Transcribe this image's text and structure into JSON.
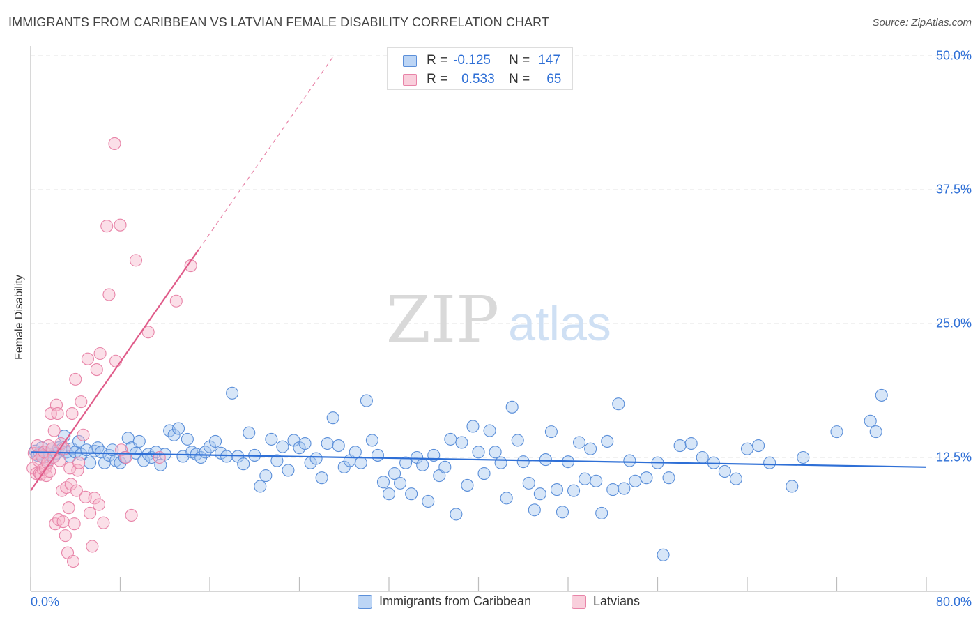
{
  "chart_data": {
    "type": "scatter",
    "title": "IMMIGRANTS FROM CARIBBEAN VS LATVIAN FEMALE DISABILITY CORRELATION CHART",
    "source": "Source: ZipAtlas.com",
    "watermark": {
      "zip": "ZIP",
      "atlas": "atlas"
    },
    "ylabel": "Female Disability",
    "xlim": [
      0,
      80
    ],
    "ylim": [
      0,
      50
    ],
    "x_tick_labels": {
      "min": "0.0%",
      "max": "80.0%"
    },
    "y_ticks": [
      {
        "value": 12.5,
        "label": "12.5%"
      },
      {
        "value": 25.0,
        "label": "25.0%"
      },
      {
        "value": 37.5,
        "label": "37.5%"
      },
      {
        "value": 50.0,
        "label": "50.0%"
      }
    ],
    "colors": {
      "blue_fill": "#a7c7f0",
      "blue_stroke": "#5b8fd9",
      "blue_line": "#2e6fd6",
      "pink_fill": "#f6b8cb",
      "pink_stroke": "#e884a8",
      "pink_line": "#e05c8a",
      "grid": "#e3e3e3",
      "accent_text": "#2e6fd6"
    },
    "legend_top": [
      {
        "r_label": "R =",
        "r": "-0.125",
        "n_label": "N =",
        "n": "147"
      },
      {
        "r_label": "R =",
        "r": "0.533",
        "n_label": "N =",
        "n": "65"
      }
    ],
    "legend_bottom": [
      "Immigrants from Caribbean",
      "Latvians"
    ],
    "series": [
      {
        "name": "Immigrants from Caribbean",
        "trend": {
          "x0": 0,
          "y0": 13.0,
          "x1": 80,
          "y1": 11.6
        },
        "points": [
          [
            0.4,
            13.1
          ],
          [
            0.6,
            12.7
          ],
          [
            0.8,
            12.9
          ],
          [
            1.0,
            13.4
          ],
          [
            1.1,
            12.5
          ],
          [
            1.3,
            13.0
          ],
          [
            1.5,
            12.2
          ],
          [
            1.7,
            12.8
          ],
          [
            1.9,
            13.3
          ],
          [
            2.1,
            12.6
          ],
          [
            2.3,
            12.9
          ],
          [
            2.5,
            13.4
          ],
          [
            2.8,
            13.3
          ],
          [
            3.0,
            14.5
          ],
          [
            3.2,
            13.0
          ],
          [
            3.5,
            12.6
          ],
          [
            3.7,
            13.3
          ],
          [
            4.0,
            13.0
          ],
          [
            4.3,
            14.0
          ],
          [
            4.5,
            12.8
          ],
          [
            5.0,
            13.2
          ],
          [
            5.3,
            12.0
          ],
          [
            5.7,
            13.1
          ],
          [
            6.0,
            13.4
          ],
          [
            6.3,
            13.0
          ],
          [
            6.6,
            12.0
          ],
          [
            7.0,
            12.7
          ],
          [
            7.3,
            13.2
          ],
          [
            7.6,
            12.2
          ],
          [
            8.0,
            12.0
          ],
          [
            8.4,
            12.5
          ],
          [
            8.7,
            14.3
          ],
          [
            9.0,
            13.4
          ],
          [
            9.4,
            12.9
          ],
          [
            9.7,
            14.0
          ],
          [
            10.1,
            12.2
          ],
          [
            10.5,
            12.8
          ],
          [
            10.8,
            12.5
          ],
          [
            11.2,
            13.0
          ],
          [
            11.6,
            11.8
          ],
          [
            12.0,
            12.8
          ],
          [
            12.4,
            15.0
          ],
          [
            12.8,
            14.6
          ],
          [
            13.2,
            15.2
          ],
          [
            13.6,
            12.6
          ],
          [
            14.0,
            14.2
          ],
          [
            14.4,
            13.0
          ],
          [
            14.8,
            12.8
          ],
          [
            15.2,
            12.5
          ],
          [
            15.6,
            13.0
          ],
          [
            16.0,
            13.5
          ],
          [
            16.5,
            14.0
          ],
          [
            17.0,
            12.9
          ],
          [
            17.5,
            12.6
          ],
          [
            18.0,
            18.5
          ],
          [
            18.5,
            12.6
          ],
          [
            19.0,
            11.9
          ],
          [
            19.5,
            14.8
          ],
          [
            20.0,
            12.7
          ],
          [
            20.5,
            9.8
          ],
          [
            21.0,
            10.8
          ],
          [
            21.5,
            14.2
          ],
          [
            22.0,
            12.2
          ],
          [
            22.5,
            13.5
          ],
          [
            23.0,
            11.3
          ],
          [
            23.5,
            14.1
          ],
          [
            24.0,
            13.4
          ],
          [
            24.5,
            13.8
          ],
          [
            25.0,
            12.0
          ],
          [
            25.5,
            12.4
          ],
          [
            26.0,
            10.6
          ],
          [
            26.5,
            13.8
          ],
          [
            27.0,
            16.2
          ],
          [
            27.5,
            13.6
          ],
          [
            28.0,
            11.6
          ],
          [
            28.5,
            12.2
          ],
          [
            29.0,
            13.0
          ],
          [
            29.5,
            12.0
          ],
          [
            30.0,
            17.8
          ],
          [
            30.5,
            14.1
          ],
          [
            31.0,
            12.7
          ],
          [
            31.5,
            10.2
          ],
          [
            32.0,
            9.1
          ],
          [
            32.5,
            11.0
          ],
          [
            33.0,
            10.1
          ],
          [
            33.5,
            12.0
          ],
          [
            34.0,
            9.1
          ],
          [
            34.5,
            12.5
          ],
          [
            35.0,
            11.8
          ],
          [
            35.5,
            8.4
          ],
          [
            36.0,
            12.7
          ],
          [
            36.5,
            10.8
          ],
          [
            37.0,
            11.6
          ],
          [
            37.5,
            14.2
          ],
          [
            38.0,
            7.2
          ],
          [
            38.5,
            13.9
          ],
          [
            39.0,
            9.9
          ],
          [
            39.5,
            15.4
          ],
          [
            40.0,
            13.0
          ],
          [
            40.5,
            11.0
          ],
          [
            41.0,
            15.0
          ],
          [
            41.5,
            13.0
          ],
          [
            42.0,
            12.0
          ],
          [
            42.5,
            8.7
          ],
          [
            43.0,
            17.2
          ],
          [
            43.5,
            14.1
          ],
          [
            44.0,
            12.1
          ],
          [
            44.5,
            10.1
          ],
          [
            45.0,
            7.6
          ],
          [
            45.5,
            9.1
          ],
          [
            46.0,
            12.3
          ],
          [
            46.5,
            14.9
          ],
          [
            47.0,
            9.5
          ],
          [
            47.5,
            7.4
          ],
          [
            48.0,
            12.1
          ],
          [
            48.5,
            9.4
          ],
          [
            49.0,
            13.9
          ],
          [
            49.5,
            10.5
          ],
          [
            50.0,
            13.3
          ],
          [
            50.5,
            10.3
          ],
          [
            51.0,
            7.3
          ],
          [
            51.5,
            14.0
          ],
          [
            52.0,
            9.5
          ],
          [
            52.5,
            17.5
          ],
          [
            53.0,
            9.6
          ],
          [
            53.5,
            12.2
          ],
          [
            54.0,
            10.3
          ],
          [
            55.0,
            10.6
          ],
          [
            56.0,
            12.0
          ],
          [
            56.5,
            3.4
          ],
          [
            57.0,
            10.6
          ],
          [
            58.0,
            13.6
          ],
          [
            59.0,
            13.8
          ],
          [
            60.0,
            12.5
          ],
          [
            61.0,
            12.0
          ],
          [
            62.0,
            11.2
          ],
          [
            63.0,
            10.5
          ],
          [
            64.0,
            13.3
          ],
          [
            65.0,
            13.6
          ],
          [
            66.0,
            12.0
          ],
          [
            68.0,
            9.8
          ],
          [
            69.0,
            12.5
          ],
          [
            72.0,
            14.9
          ],
          [
            75.0,
            15.9
          ],
          [
            75.5,
            14.9
          ],
          [
            76.0,
            18.3
          ]
        ]
      },
      {
        "name": "Latvians",
        "trend": {
          "x0": 0,
          "y0": 9.4,
          "x1": 15.0,
          "y1": 31.9
        },
        "trend_ext": {
          "x0": 15.0,
          "y0": 31.9,
          "x1": 27.0,
          "y1": 49.9
        },
        "points": [
          [
            0.2,
            11.5
          ],
          [
            0.3,
            12.9
          ],
          [
            0.5,
            11.0
          ],
          [
            0.6,
            13.6
          ],
          [
            0.7,
            12.2
          ],
          [
            0.8,
            11.0
          ],
          [
            0.9,
            10.9
          ],
          [
            1.0,
            12.6
          ],
          [
            1.1,
            11.4
          ],
          [
            1.2,
            13.0
          ],
          [
            1.3,
            11.5
          ],
          [
            1.4,
            10.8
          ],
          [
            1.5,
            12.0
          ],
          [
            1.6,
            13.6
          ],
          [
            1.7,
            11.2
          ],
          [
            1.8,
            16.6
          ],
          [
            1.9,
            13.3
          ],
          [
            2.0,
            12.5
          ],
          [
            2.1,
            15.0
          ],
          [
            2.2,
            6.3
          ],
          [
            2.3,
            17.4
          ],
          [
            2.4,
            16.6
          ],
          [
            2.5,
            6.7
          ],
          [
            2.6,
            12.2
          ],
          [
            2.7,
            13.8
          ],
          [
            2.8,
            9.4
          ],
          [
            2.9,
            6.5
          ],
          [
            3.0,
            13.3
          ],
          [
            3.1,
            5.2
          ],
          [
            3.2,
            9.7
          ],
          [
            3.3,
            3.6
          ],
          [
            3.4,
            7.8
          ],
          [
            3.5,
            11.5
          ],
          [
            3.6,
            10.0
          ],
          [
            3.7,
            16.6
          ],
          [
            3.8,
            2.8
          ],
          [
            3.9,
            6.3
          ],
          [
            4.0,
            19.8
          ],
          [
            4.1,
            9.4
          ],
          [
            4.2,
            11.3
          ],
          [
            4.3,
            12.0
          ],
          [
            4.5,
            17.7
          ],
          [
            4.7,
            14.6
          ],
          [
            4.9,
            8.8
          ],
          [
            5.1,
            21.7
          ],
          [
            5.3,
            7.3
          ],
          [
            5.5,
            4.2
          ],
          [
            5.7,
            8.7
          ],
          [
            5.9,
            20.7
          ],
          [
            6.1,
            8.1
          ],
          [
            6.2,
            22.2
          ],
          [
            6.5,
            6.4
          ],
          [
            6.8,
            34.1
          ],
          [
            7.0,
            27.7
          ],
          [
            7.5,
            41.8
          ],
          [
            7.6,
            21.5
          ],
          [
            8.0,
            34.2
          ],
          [
            8.1,
            13.2
          ],
          [
            8.5,
            12.5
          ],
          [
            9.0,
            7.1
          ],
          [
            9.4,
            30.9
          ],
          [
            10.5,
            24.2
          ],
          [
            11.5,
            12.5
          ],
          [
            13.0,
            27.1
          ],
          [
            14.3,
            30.4
          ]
        ]
      }
    ]
  }
}
